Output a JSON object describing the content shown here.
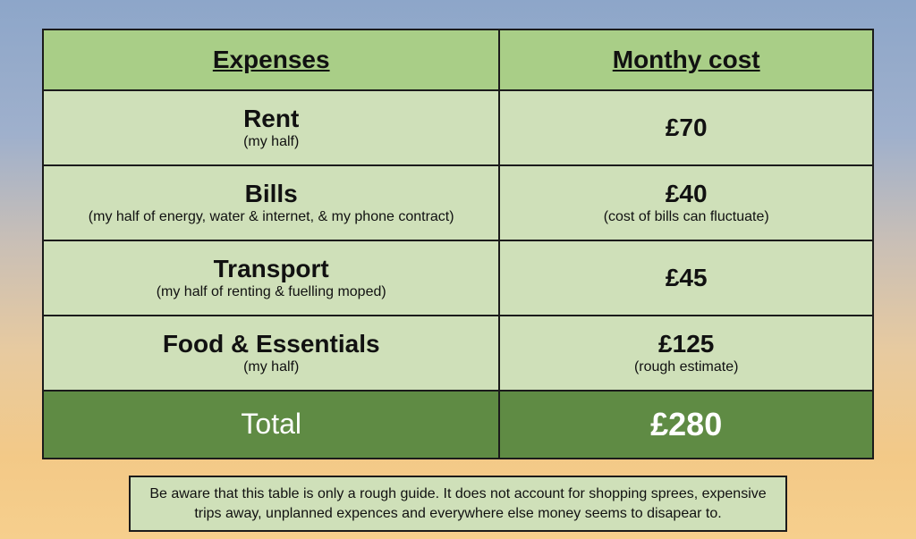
{
  "table": {
    "headers": {
      "expenses": "Expenses",
      "cost": "Monthy cost"
    },
    "rows": [
      {
        "name": "Rent",
        "name_sub": "(my half)",
        "cost": "£70",
        "cost_sub": ""
      },
      {
        "name": "Bills",
        "name_sub": "(my half of energy, water & internet, & my phone contract)",
        "cost": "£40",
        "cost_sub": "(cost of bills can fluctuate)"
      },
      {
        "name": "Transport",
        "name_sub": "(my half of renting & fuelling moped)",
        "cost": "£45",
        "cost_sub": ""
      },
      {
        "name": "Food & Essentials",
        "name_sub": "(my half)",
        "cost": "£125",
        "cost_sub": "(rough estimate)"
      }
    ],
    "total": {
      "label": "Total",
      "value": "£280"
    }
  },
  "note": "Be aware that this table is only a rough guide. It does not account for shopping sprees, expensive trips away, unplanned expences and everywhere else money seems to disapear to.",
  "colors": {
    "header_bg": "#a9ce87",
    "row_bg": "#cfe0b9",
    "total_bg": "#5f8b44",
    "total_text": "#ffffff",
    "border": "#1b1b1b"
  }
}
